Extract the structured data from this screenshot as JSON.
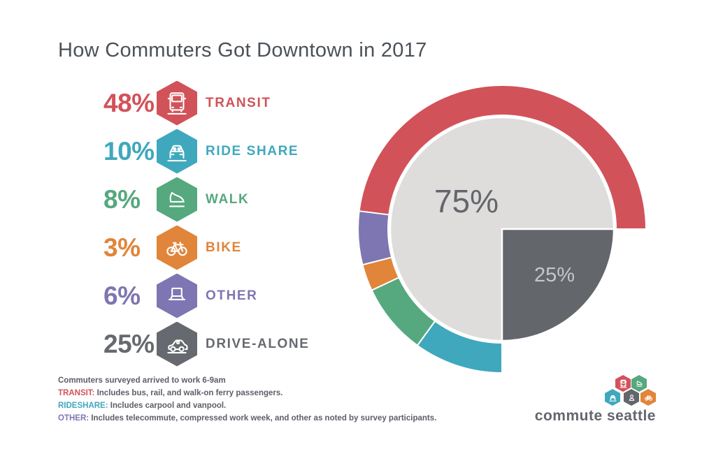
{
  "title": "How Commuters Got Downtown in 2017",
  "colors": {
    "transit_red": "#d2525a",
    "rideshare_teal": "#3fa8bd",
    "walk_green": "#56a87e",
    "bike_orange": "#e0853a",
    "other_purple": "#7d76b2",
    "drive_gray": "#63666b",
    "pie_light_gray": "#dedddb",
    "title_gray": "#4b5158",
    "footnote_gray": "#5b5f66"
  },
  "legend": {
    "items": [
      {
        "value_label": "48%",
        "label": "TRANSIT",
        "color": "#d2525a",
        "icon": "bus-front-icon"
      },
      {
        "value_label": "10%",
        "label": "RIDE SHARE",
        "color": "#3fa8bd",
        "icon": "car-front-icon"
      },
      {
        "value_label": "8%",
        "label": "WALK",
        "color": "#56a87e",
        "icon": "shoe-icon"
      },
      {
        "value_label": "3%",
        "label": "BIKE",
        "color": "#e0853a",
        "icon": "bike-icon"
      },
      {
        "value_label": "6%",
        "label": "OTHER",
        "color": "#7d76b2",
        "icon": "laptop-icon"
      },
      {
        "value_label": "25%",
        "label": "DRIVE-ALONE",
        "color": "#66696f",
        "icon": "car-side-icon"
      }
    ]
  },
  "chart_data": {
    "type": "pie",
    "title": "How Commuters Got Downtown in 2017",
    "description": "Outer ring spans 270 degrees (75% non-drive-alone modes), starting at 3 o'clock and sweeping counterclockwise to 6 o'clock; inner pie shows 75% vs 25% drive-alone quarter in the lower-right quadrant.",
    "outer_ring": {
      "start_angle_deg": 0,
      "direction": "counterclockwise",
      "total_sweep_deg": 270,
      "segments": [
        {
          "label": "TRANSIT",
          "value": 48,
          "color": "#d2525a"
        },
        {
          "label": "OTHER",
          "value": 6,
          "color": "#7d76b2"
        },
        {
          "label": "BIKE",
          "value": 3,
          "color": "#e0853a"
        },
        {
          "label": "WALK",
          "value": 8,
          "color": "#56a87e"
        },
        {
          "label": "RIDE SHARE",
          "value": 10,
          "color": "#3fa8bd"
        }
      ]
    },
    "inner_pie": {
      "segments": [
        {
          "label": "75%",
          "value": 75,
          "color": "#dedddb",
          "text_color": "#63666c"
        },
        {
          "label": "25%",
          "value": 25,
          "color": "#63666b",
          "text_color": "#c6c7c9"
        }
      ]
    }
  },
  "footnotes": {
    "line1": "Commuters surveyed arrived to work 6-9am",
    "notes": [
      {
        "prefix": "TRANSIT:",
        "color": "#d2525a",
        "text": "Includes bus, rail, and walk-on ferry passengers."
      },
      {
        "prefix": "RIDESHARE:",
        "color": "#3fa8bd",
        "text": "Includes carpool and vanpool."
      },
      {
        "prefix": "OTHER:",
        "color": "#7d76b2",
        "text": "Includes telecommute, compressed work week, and other as noted by survey participants."
      }
    ]
  },
  "logo": {
    "text": "commute seattle",
    "hexagons": [
      {
        "color": "#d2525a",
        "icon": "bus-front-icon"
      },
      {
        "color": "#56a87e",
        "icon": "shoe-icon"
      },
      {
        "color": "#3fa8bd",
        "icon": "car-front-icon"
      },
      {
        "color": "#63666b",
        "icon": "person-icon"
      },
      {
        "color": "#e0853a",
        "icon": "bike-icon"
      }
    ]
  }
}
